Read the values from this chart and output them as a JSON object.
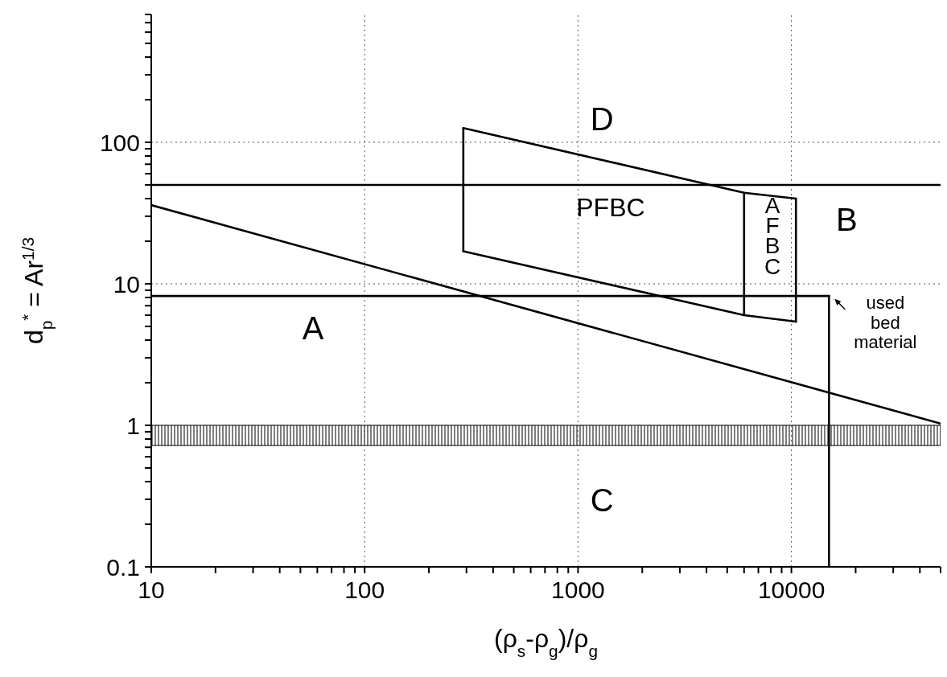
{
  "chart_data": {
    "type": "line",
    "xlabel": "(ρ$_{s}$-ρ$_{g}$)/ρ$_{g}$",
    "ylabel": "d$_{p}$$^{*}$ = Ar$^{1/3}$",
    "log": "xy",
    "xlim": [
      10,
      50000
    ],
    "ylim": [
      0.1,
      800
    ],
    "xticks": [
      10,
      {
        "value": 20,
        "label": null
      },
      {
        "value": 30,
        "label": null
      },
      {
        "value": 40,
        "label": null
      },
      {
        "value": 50,
        "label": null
      },
      {
        "value": 60,
        "label": null
      },
      {
        "value": 70,
        "label": null
      },
      {
        "value": 80,
        "label": null
      },
      {
        "value": 90,
        "label": null
      },
      100,
      {
        "value": 200,
        "label": null
      },
      {
        "value": 300,
        "label": null
      },
      {
        "value": 400,
        "label": null
      },
      {
        "value": 500,
        "label": null
      },
      {
        "value": 600,
        "label": null
      },
      {
        "value": 700,
        "label": null
      },
      {
        "value": 800,
        "label": null
      },
      {
        "value": 900,
        "label": null
      },
      1000,
      {
        "value": 2000,
        "label": null
      },
      {
        "value": 3000,
        "label": null
      },
      {
        "value": 4000,
        "label": null
      },
      {
        "value": 5000,
        "label": null
      },
      {
        "value": 6000,
        "label": null
      },
      {
        "value": 7000,
        "label": null
      },
      {
        "value": 8000,
        "label": null
      },
      {
        "value": 9000,
        "label": null
      },
      10000,
      {
        "value": 20000,
        "label": null
      },
      {
        "value": 30000,
        "label": null
      },
      {
        "value": 40000,
        "label": null
      },
      {
        "value": 50000,
        "label": null
      }
    ],
    "yticks": [
      0.1,
      {
        "value": 0.2,
        "label": null
      },
      {
        "value": 0.3,
        "label": null
      },
      {
        "value": 0.4,
        "label": null
      },
      {
        "value": 0.5,
        "label": null
      },
      {
        "value": 0.6,
        "label": null
      },
      {
        "value": 0.7,
        "label": null
      },
      {
        "value": 0.8,
        "label": null
      },
      {
        "value": 0.9,
        "label": null
      },
      1,
      {
        "value": 2,
        "label": null
      },
      {
        "value": 3,
        "label": null
      },
      {
        "value": 4,
        "label": null
      },
      {
        "value": 5,
        "label": null
      },
      {
        "value": 6,
        "label": null
      },
      {
        "value": 7,
        "label": null
      },
      {
        "value": 8,
        "label": null
      },
      {
        "value": 9,
        "label": null
      },
      10,
      {
        "value": 20,
        "label": null
      },
      {
        "value": 30,
        "label": null
      },
      {
        "value": 40,
        "label": null
      },
      {
        "value": 50,
        "label": null
      },
      {
        "value": 60,
        "label": null
      },
      {
        "value": 70,
        "label": null
      },
      {
        "value": 80,
        "label": null
      },
      {
        "value": 90,
        "label": null
      },
      100,
      {
        "value": 200,
        "label": null
      },
      {
        "value": 300,
        "label": null
      },
      {
        "value": 400,
        "label": null
      },
      {
        "value": 500,
        "label": null
      },
      {
        "value": 600,
        "label": null
      },
      {
        "value": 700,
        "label": null
      },
      {
        "value": 800,
        "label": null
      }
    ],
    "grid": true,
    "marker": "none",
    "series": [
      {
        "color": "#000000",
        "x": [
          10,
          50000
        ],
        "values": [
          36,
          1.03
        ]
      },
      {
        "color": "#000000",
        "x": [
          10,
          50000
        ],
        "values": [
          50,
          50
        ]
      },
      {
        "color": "#000000",
        "x": [
          290,
          6000,
          10500
        ],
        "values": [
          126,
          44,
          40
        ]
      },
      {
        "color": "#000000",
        "x": [
          290,
          6000,
          10500
        ],
        "values": [
          17,
          6.0,
          5.4
        ]
      },
      {
        "color": "#000000",
        "x": [
          290,
          290
        ],
        "values": [
          17,
          126
        ]
      },
      {
        "color": "#000000",
        "x": [
          6000,
          6000
        ],
        "values": [
          6.0,
          44
        ]
      },
      {
        "color": "#000000",
        "x": [
          10500,
          10500
        ],
        "values": [
          5.4,
          40
        ]
      },
      {
        "color": "#000000",
        "x": [
          10,
          15000
        ],
        "values": [
          8.2,
          8.2
        ]
      },
      {
        "color": "#000000",
        "x": [
          15000,
          15000
        ],
        "values": [
          0.1,
          8.2
        ]
      }
    ],
    "bands": [
      {
        "axis": "y",
        "from": 0.72,
        "to": 1.0,
        "color": "#000000"
      }
    ],
    "annotations": [
      "A",
      "B",
      "C",
      "D",
      "PFBC",
      "A\nF\nB\nC",
      "used\nbed\nmaterial"
    ]
  }
}
